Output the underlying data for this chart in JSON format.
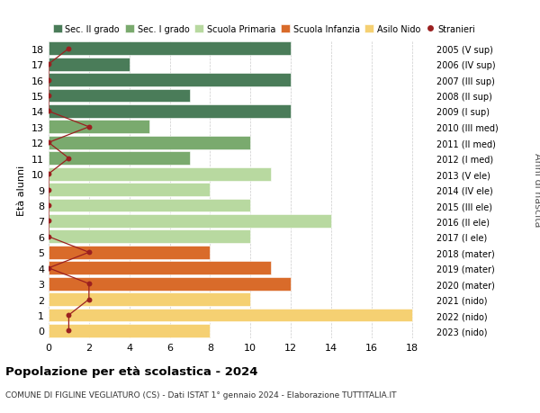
{
  "ages": [
    18,
    17,
    16,
    15,
    14,
    13,
    12,
    11,
    10,
    9,
    8,
    7,
    6,
    5,
    4,
    3,
    2,
    1,
    0
  ],
  "right_labels": [
    "2005 (V sup)",
    "2006 (IV sup)",
    "2007 (III sup)",
    "2008 (II sup)",
    "2009 (I sup)",
    "2010 (III med)",
    "2011 (II med)",
    "2012 (I med)",
    "2013 (V ele)",
    "2014 (IV ele)",
    "2015 (III ele)",
    "2016 (II ele)",
    "2017 (I ele)",
    "2018 (mater)",
    "2019 (mater)",
    "2020 (mater)",
    "2021 (nido)",
    "2022 (nido)",
    "2023 (nido)"
  ],
  "bar_values": [
    12,
    4,
    12,
    7,
    12,
    5,
    10,
    7,
    11,
    8,
    10,
    14,
    10,
    8,
    11,
    12,
    10,
    18,
    8
  ],
  "bar_colors": [
    "#4a7c59",
    "#4a7c59",
    "#4a7c59",
    "#4a7c59",
    "#4a7c59",
    "#7aaa6e",
    "#7aaa6e",
    "#7aaa6e",
    "#b8d9a0",
    "#b8d9a0",
    "#b8d9a0",
    "#b8d9a0",
    "#b8d9a0",
    "#d96b2a",
    "#d96b2a",
    "#d96b2a",
    "#f5d072",
    "#f5d072",
    "#f5d072"
  ],
  "stranieri_values": [
    1,
    0,
    0,
    0,
    0,
    2,
    0,
    1,
    0,
    0,
    0,
    0,
    0,
    2,
    0,
    2,
    2,
    1,
    1
  ],
  "stranieri_color": "#9b2020",
  "ylabel_left": "Età alunni",
  "ylabel_right": "Anni di nascita",
  "xlim": [
    0,
    19
  ],
  "ylim": [
    -0.5,
    18.5
  ],
  "xticks": [
    0,
    2,
    4,
    6,
    8,
    10,
    12,
    14,
    16,
    18
  ],
  "title": "Popolazione per età scolastica - 2024",
  "subtitle": "COMUNE DI FIGLINE VEGLIATURO (CS) - Dati ISTAT 1° gennaio 2024 - Elaborazione TUTTITALIA.IT",
  "legend_items": [
    {
      "label": "Sec. II grado",
      "color": "#4a7c59"
    },
    {
      "label": "Sec. I grado",
      "color": "#7aaa6e"
    },
    {
      "label": "Scuola Primaria",
      "color": "#b8d9a0"
    },
    {
      "label": "Scuola Infanzia",
      "color": "#d96b2a"
    },
    {
      "label": "Asilo Nido",
      "color": "#f5d072"
    },
    {
      "label": "Stranieri",
      "color": "#9b2020"
    }
  ],
  "bg_color": "#ffffff",
  "grid_color": "#cccccc",
  "bar_height": 0.85
}
